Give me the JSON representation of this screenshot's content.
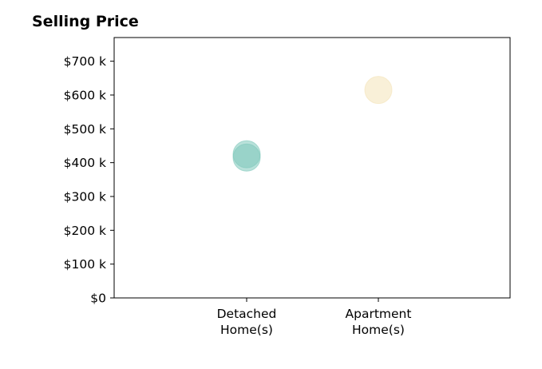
{
  "chart_data": {
    "type": "scatter",
    "title": "Selling Price",
    "categories": [
      "Detached\nHome(s)",
      "Apartment\nHome(s)"
    ],
    "ylim": [
      0,
      770000
    ],
    "yticks": [
      0,
      100000,
      200000,
      300000,
      400000,
      500000,
      600000,
      700000
    ],
    "ytick_labels": [
      "$0",
      "$100 k",
      "$200 k",
      "$300 k",
      "$400 k",
      "$500 k",
      "$600 k",
      "$700 k"
    ],
    "xlabel": "",
    "ylabel": "",
    "grid": false,
    "points": [
      {
        "category": 0,
        "value": 425000,
        "color": "#7fc8bb"
      },
      {
        "category": 0,
        "value": 415000,
        "color": "#7fc8bb"
      },
      {
        "category": 1,
        "value": 615000,
        "color": "#f4e3b8"
      }
    ]
  }
}
